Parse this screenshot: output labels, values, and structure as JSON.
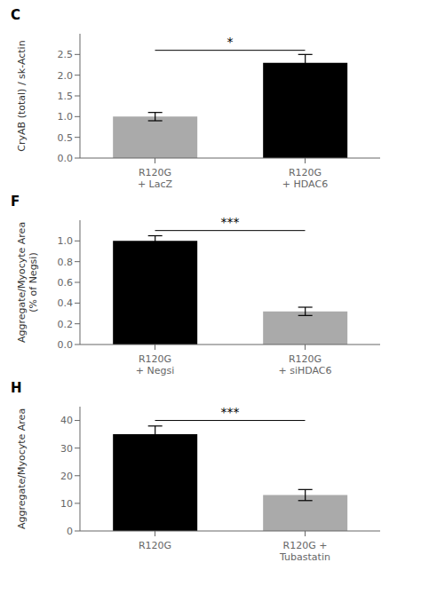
{
  "chart_data": [
    {
      "type": "bar",
      "title": "C",
      "categories": [
        "R120G\n+ LacZ",
        "R120G\n+ HDAC6"
      ],
      "values": [
        1.0,
        2.3
      ],
      "errors": [
        0.1,
        0.2
      ],
      "colors": [
        "#aaaaaa",
        "#000000"
      ],
      "ylabel": "CryAB (total) / sk-Actin",
      "ylim": [
        0,
        3.0
      ],
      "yticks": [
        {
          "value": 0,
          "label": "0.0"
        },
        {
          "value": 0.5,
          "label": "0.5"
        },
        {
          "value": 1.0,
          "label": "1.0"
        },
        {
          "value": 1.5,
          "label": "1.5"
        },
        {
          "value": 2.0,
          "label": "2.0"
        },
        {
          "value": 2.5,
          "label": "2.5"
        }
      ],
      "annotations": [
        {
          "text": "*",
          "y": 2.6
        }
      ]
    },
    {
      "type": "bar",
      "title": "F",
      "categories": [
        "R120G\n+ Negsi",
        "R120G\n+ siHDAC6"
      ],
      "values": [
        1.0,
        0.32
      ],
      "errors": [
        0.05,
        0.04
      ],
      "colors": [
        "#000000",
        "#aaaaaa"
      ],
      "ylabel": "Aggregate/Myocyte Area\n(% of Negsi)",
      "ylim": [
        0,
        1.2
      ],
      "yticks": [
        {
          "value": 0,
          "label": "0.0"
        },
        {
          "value": 0.2,
          "label": "0.2"
        },
        {
          "value": 0.4,
          "label": "0.4"
        },
        {
          "value": 0.6,
          "label": "0.6"
        },
        {
          "value": 0.8,
          "label": "0.8"
        },
        {
          "value": 1.0,
          "label": "1.0"
        }
      ],
      "annotations": [
        {
          "text": "***",
          "y": 1.1
        }
      ]
    },
    {
      "type": "bar",
      "title": "H",
      "categories": [
        "R120G",
        "R120G +\nTubastatin"
      ],
      "values": [
        35,
        13
      ],
      "errors": [
        3,
        2
      ],
      "colors": [
        "#000000",
        "#aaaaaa"
      ],
      "ylabel": "Aggregate/Myocyte Area",
      "ylim": [
        0,
        45
      ],
      "yticks": [
        0,
        10,
        20,
        30,
        40
      ],
      "annotations": [
        {
          "text": "***",
          "y": 40
        }
      ]
    }
  ]
}
